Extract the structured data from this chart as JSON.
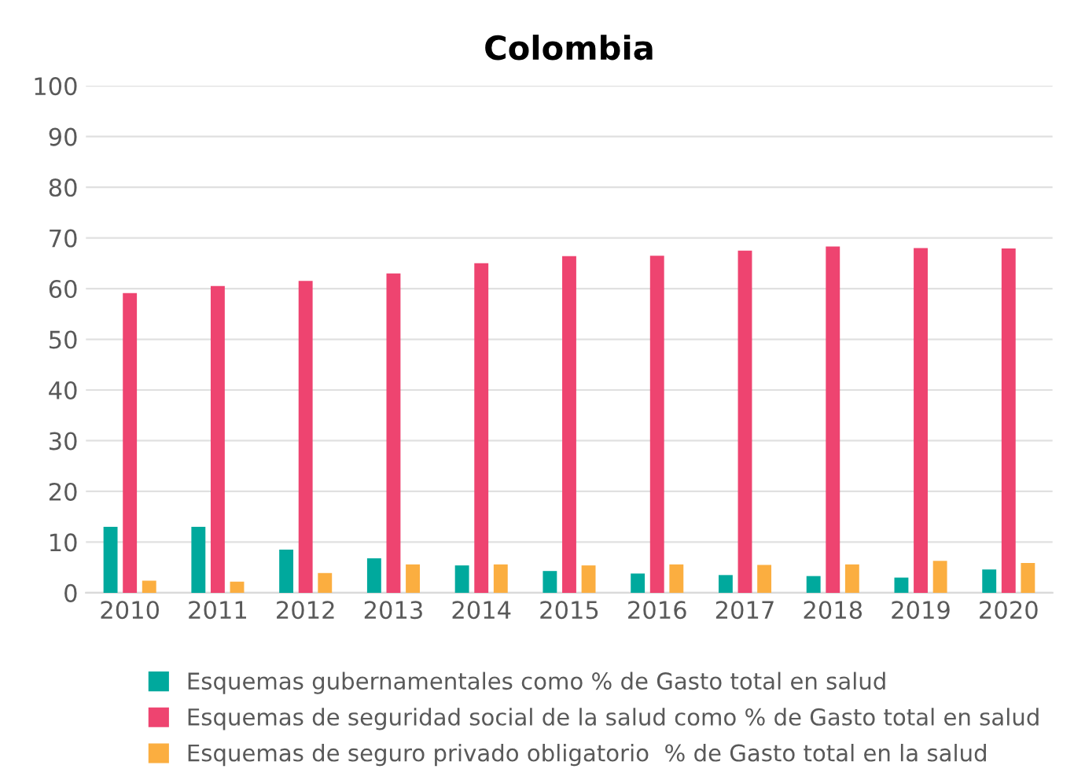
{
  "chart_data": {
    "type": "bar",
    "title": "Colombia",
    "categories": [
      "2010",
      "2011",
      "2012",
      "2013",
      "2014",
      "2015",
      "2016",
      "2017",
      "2018",
      "2019",
      "2020"
    ],
    "series": [
      {
        "name": "Esquemas gubernamentales como % de Gasto total en salud",
        "color": "#00a99d",
        "values": [
          13.0,
          13.0,
          8.5,
          6.8,
          5.4,
          4.3,
          3.8,
          3.5,
          3.3,
          3.0,
          4.6
        ]
      },
      {
        "name": "Esquemas de seguridad social de la salud como % de Gasto total en salud",
        "color": "#ee4470",
        "values": [
          59.1,
          60.5,
          61.5,
          63.0,
          65.0,
          66.4,
          66.5,
          67.5,
          68.3,
          68.0,
          67.9
        ]
      },
      {
        "name": "Esquemas de seguro privado obligatorio  % de Gasto total en la salud",
        "color": "#fbae40",
        "values": [
          2.4,
          2.2,
          3.9,
          5.6,
          5.6,
          5.4,
          5.6,
          5.5,
          5.6,
          6.3,
          5.9
        ]
      }
    ],
    "ylim": [
      0,
      100
    ],
    "yticks": [
      0,
      10,
      20,
      30,
      40,
      50,
      60,
      70,
      80,
      90,
      100
    ],
    "grid": "y",
    "legend": "bottom"
  }
}
